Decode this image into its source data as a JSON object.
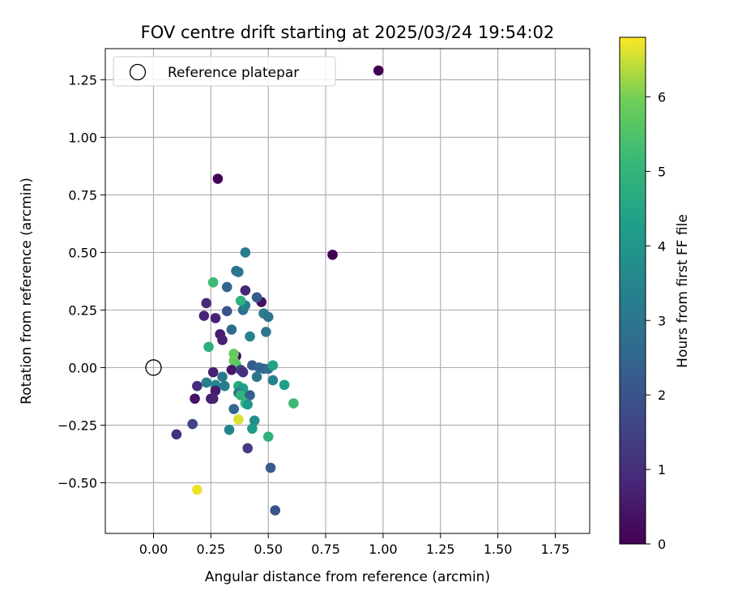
{
  "chart_data": {
    "type": "scatter",
    "title": "FOV centre drift starting at 2025/03/24 19:54:02",
    "xlabel": "Angular distance from reference (arcmin)",
    "ylabel": "Rotation from reference (arcmin)",
    "xlim": [
      -0.21,
      1.9
    ],
    "ylim": [
      -0.72,
      1.385
    ],
    "xticks": [
      "0.00",
      "0.25",
      "0.50",
      "0.75",
      "1.00",
      "1.25",
      "1.50",
      "1.75"
    ],
    "yticks": [
      "−0.50",
      "−0.25",
      "0.00",
      "0.25",
      "0.50",
      "0.75",
      "1.00",
      "1.25"
    ],
    "grid": true,
    "legend": {
      "position": "top-left",
      "entries": [
        "Reference platepar"
      ]
    },
    "reference_point": {
      "x": 0.0,
      "y": 0.0
    },
    "colorbar": {
      "label": "Hours from first FF file",
      "min": 0,
      "max": 6.8,
      "ticks": [
        "0",
        "1",
        "2",
        "3",
        "4",
        "5",
        "6"
      ],
      "colormap": "viridis"
    },
    "points": [
      {
        "x": 0.98,
        "y": 1.29,
        "h": 0.0
      },
      {
        "x": 0.28,
        "y": 0.82,
        "h": 0.0
      },
      {
        "x": 0.78,
        "y": 0.49,
        "h": 0.0
      },
      {
        "x": 0.47,
        "y": 0.285,
        "h": 0.3
      },
      {
        "x": 0.4,
        "y": 0.335,
        "h": 0.8
      },
      {
        "x": 0.23,
        "y": 0.28,
        "h": 0.9
      },
      {
        "x": 0.22,
        "y": 0.225,
        "h": 0.8
      },
      {
        "x": 0.27,
        "y": 0.215,
        "h": 0.7
      },
      {
        "x": 0.29,
        "y": 0.145,
        "h": 0.6
      },
      {
        "x": 0.3,
        "y": 0.12,
        "h": 0.7
      },
      {
        "x": 0.32,
        "y": 0.245,
        "h": 2.0
      },
      {
        "x": 0.32,
        "y": 0.35,
        "h": 2.5
      },
      {
        "x": 0.36,
        "y": 0.42,
        "h": 2.8
      },
      {
        "x": 0.37,
        "y": 0.415,
        "h": 3.0
      },
      {
        "x": 0.4,
        "y": 0.5,
        "h": 3.1
      },
      {
        "x": 0.45,
        "y": 0.305,
        "h": 2.2
      },
      {
        "x": 0.34,
        "y": 0.165,
        "h": 2.6
      },
      {
        "x": 0.39,
        "y": 0.25,
        "h": 2.9
      },
      {
        "x": 0.4,
        "y": 0.27,
        "h": 3.3
      },
      {
        "x": 0.48,
        "y": 0.235,
        "h": 3.2
      },
      {
        "x": 0.5,
        "y": 0.22,
        "h": 3.0
      },
      {
        "x": 0.49,
        "y": 0.155,
        "h": 3.0
      },
      {
        "x": 0.42,
        "y": 0.135,
        "h": 3.4
      },
      {
        "x": 0.38,
        "y": 0.29,
        "h": 4.9
      },
      {
        "x": 0.26,
        "y": 0.37,
        "h": 5.2
      },
      {
        "x": 0.24,
        "y": 0.09,
        "h": 4.8
      },
      {
        "x": 0.36,
        "y": 0.05,
        "h": 0.1
      },
      {
        "x": 0.35,
        "y": 0.06,
        "h": 5.8
      },
      {
        "x": 0.35,
        "y": 0.03,
        "h": 5.9
      },
      {
        "x": 0.36,
        "y": 0.015,
        "h": 5.7
      },
      {
        "x": 0.34,
        "y": -0.01,
        "h": 0.5
      },
      {
        "x": 0.38,
        "y": -0.01,
        "h": 1.5
      },
      {
        "x": 0.39,
        "y": -0.02,
        "h": 1.0
      },
      {
        "x": 0.43,
        "y": 0.01,
        "h": 2.2
      },
      {
        "x": 0.46,
        "y": 0.0,
        "h": 2.5
      },
      {
        "x": 0.48,
        "y": -0.005,
        "h": 2.4
      },
      {
        "x": 0.5,
        "y": -0.005,
        "h": 2.8
      },
      {
        "x": 0.52,
        "y": 0.01,
        "h": 4.4
      },
      {
        "x": 0.45,
        "y": -0.04,
        "h": 3.0
      },
      {
        "x": 0.52,
        "y": -0.055,
        "h": 3.4
      },
      {
        "x": 0.57,
        "y": -0.075,
        "h": 4.3
      },
      {
        "x": 0.61,
        "y": -0.155,
        "h": 5.2
      },
      {
        "x": 0.26,
        "y": -0.02,
        "h": 0.7
      },
      {
        "x": 0.3,
        "y": -0.04,
        "h": 3.0
      },
      {
        "x": 0.23,
        "y": -0.065,
        "h": 3.3
      },
      {
        "x": 0.27,
        "y": -0.075,
        "h": 3.6
      },
      {
        "x": 0.19,
        "y": -0.08,
        "h": 1.0
      },
      {
        "x": 0.27,
        "y": -0.1,
        "h": 0.6
      },
      {
        "x": 0.31,
        "y": -0.08,
        "h": 3.2
      },
      {
        "x": 0.37,
        "y": -0.08,
        "h": 4.6
      },
      {
        "x": 0.39,
        "y": -0.09,
        "h": 4.3
      },
      {
        "x": 0.37,
        "y": -0.11,
        "h": 3.0
      },
      {
        "x": 0.38,
        "y": -0.12,
        "h": 4.9
      },
      {
        "x": 0.42,
        "y": -0.12,
        "h": 2.3
      },
      {
        "x": 0.4,
        "y": -0.155,
        "h": 5.1
      },
      {
        "x": 0.41,
        "y": -0.16,
        "h": 4.1
      },
      {
        "x": 0.18,
        "y": -0.135,
        "h": 0.4
      },
      {
        "x": 0.25,
        "y": -0.135,
        "h": 0.6
      },
      {
        "x": 0.26,
        "y": -0.135,
        "h": 0.7
      },
      {
        "x": 0.35,
        "y": -0.18,
        "h": 2.6
      },
      {
        "x": 0.37,
        "y": -0.225,
        "h": 6.6
      },
      {
        "x": 0.44,
        "y": -0.23,
        "h": 3.8
      },
      {
        "x": 0.43,
        "y": -0.265,
        "h": 4.2
      },
      {
        "x": 0.33,
        "y": -0.27,
        "h": 3.5
      },
      {
        "x": 0.17,
        "y": -0.245,
        "h": 1.6
      },
      {
        "x": 0.1,
        "y": -0.29,
        "h": 1.1
      },
      {
        "x": 0.5,
        "y": -0.3,
        "h": 4.9
      },
      {
        "x": 0.41,
        "y": -0.35,
        "h": 1.4
      },
      {
        "x": 0.51,
        "y": -0.435,
        "h": 2.2
      },
      {
        "x": 0.19,
        "y": -0.53,
        "h": 6.7
      },
      {
        "x": 0.53,
        "y": -0.62,
        "h": 2.0
      }
    ]
  }
}
